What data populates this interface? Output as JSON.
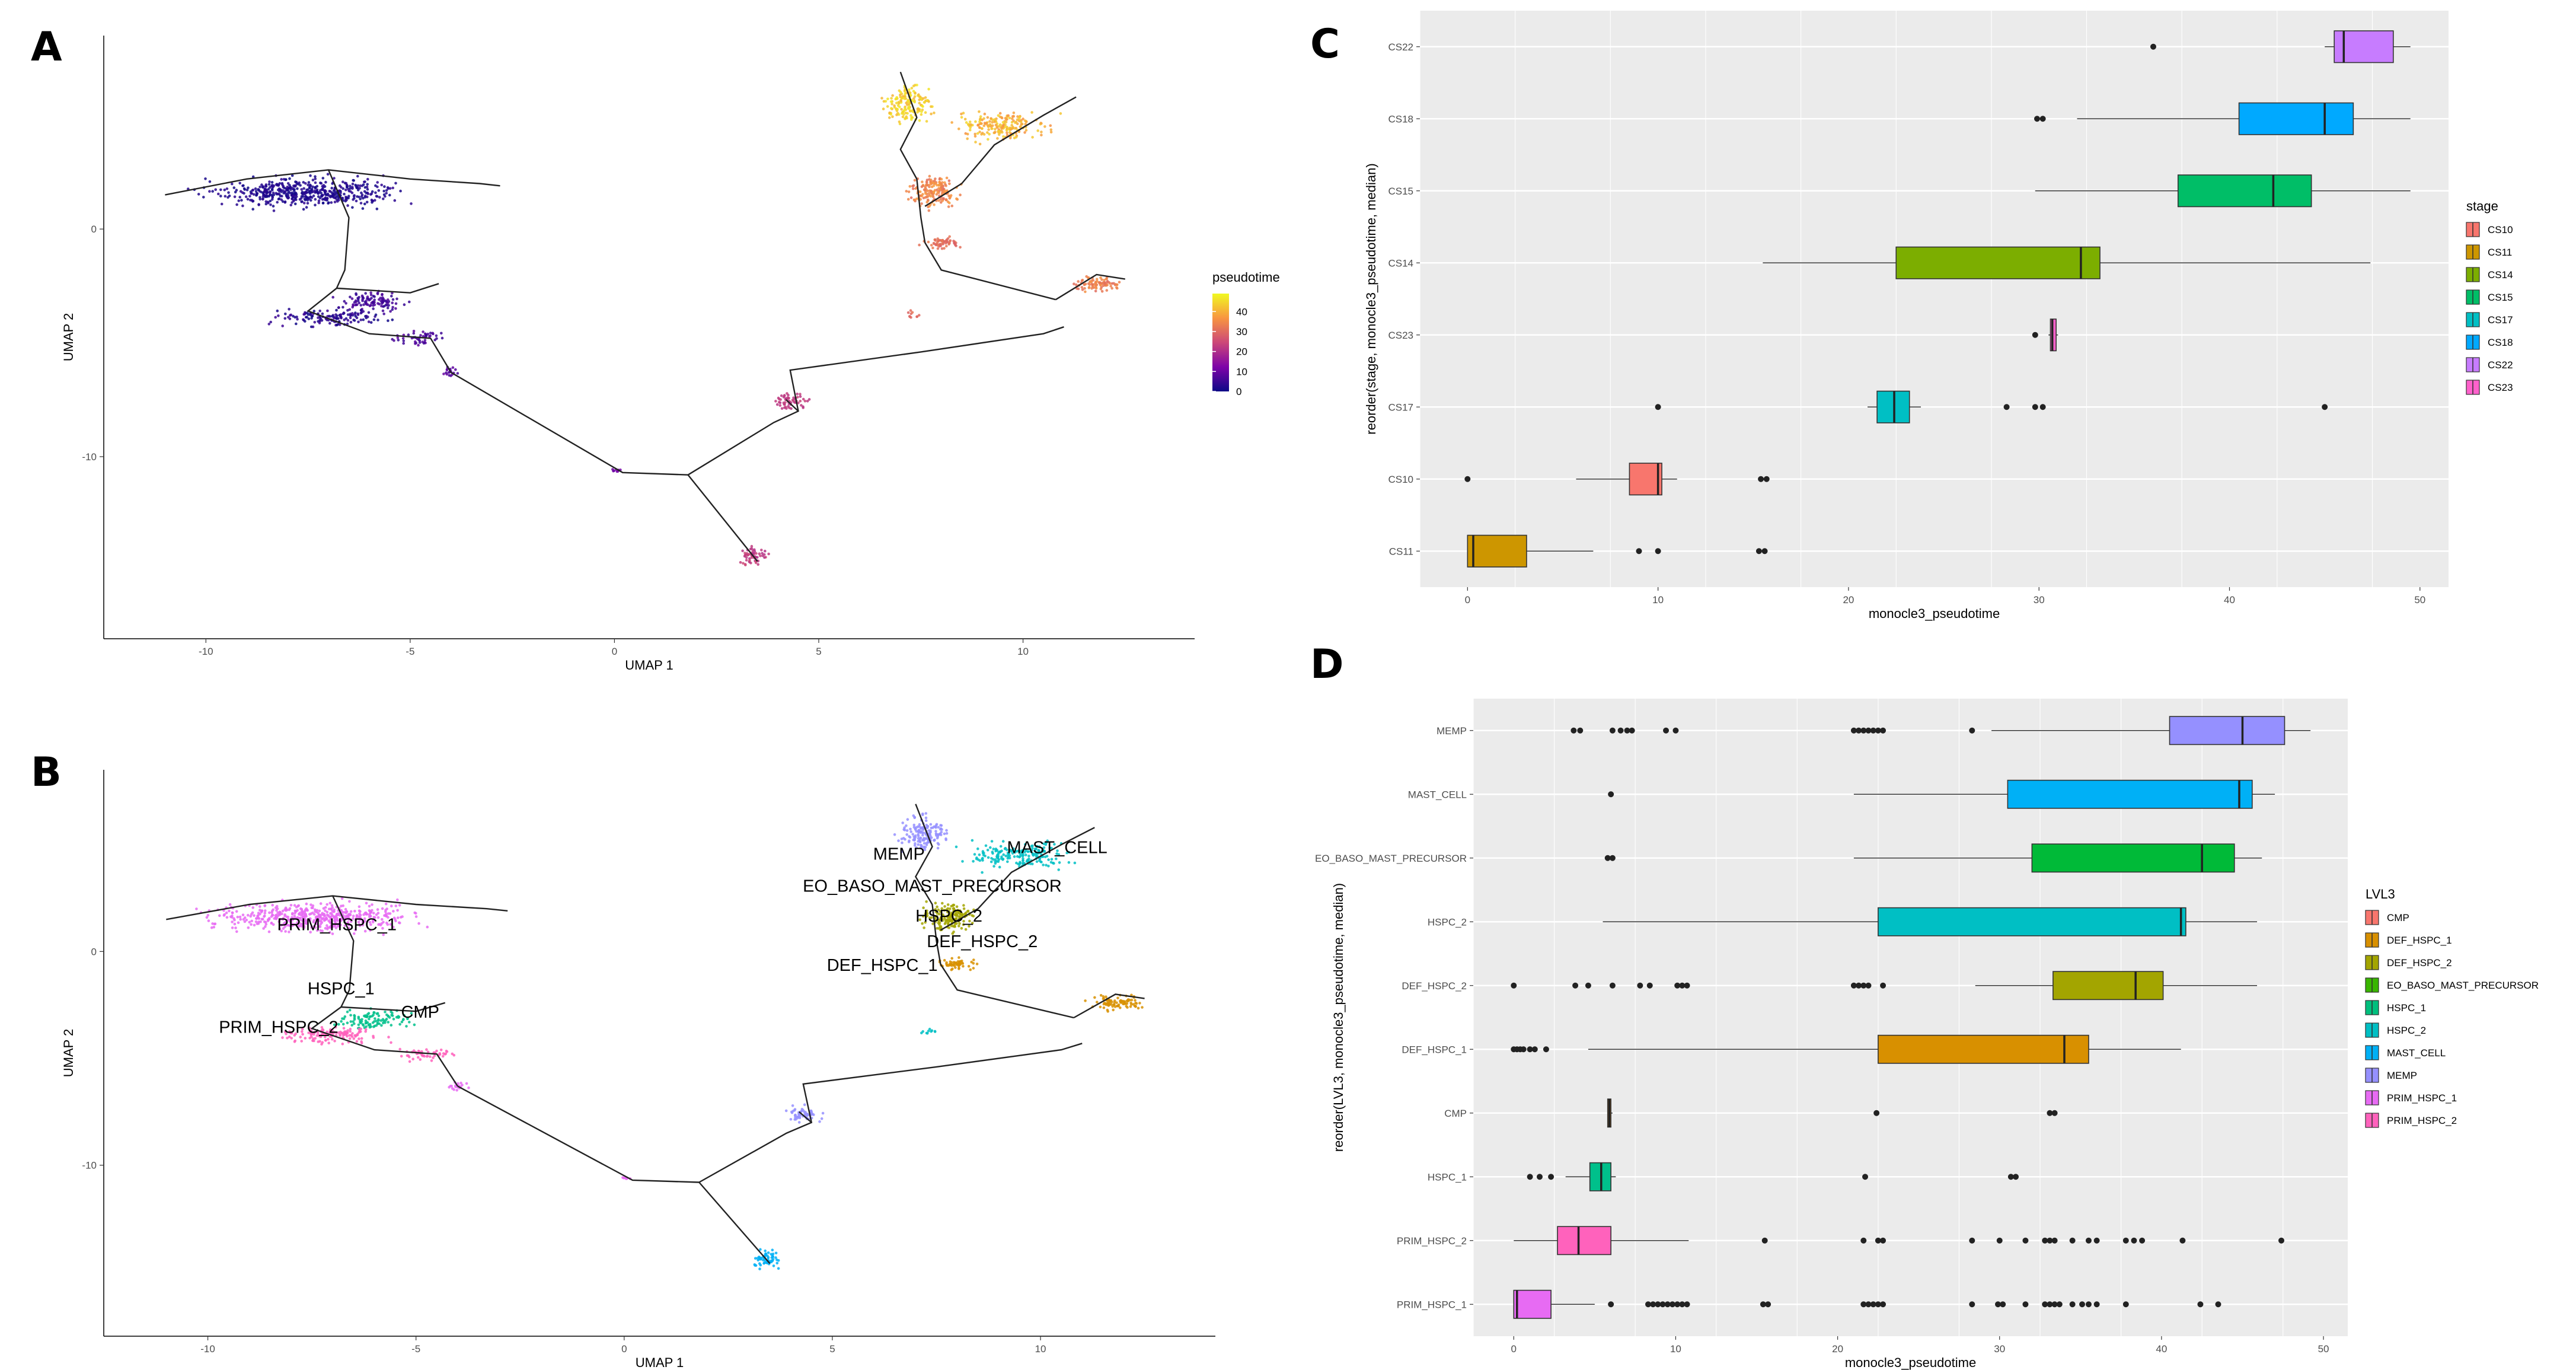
{
  "panels": {
    "A": "A",
    "B": "B",
    "C": "C",
    "D": "D"
  },
  "chart_data": [
    {
      "panel": "A",
      "type": "scatter",
      "xlabel": "UMAP 1",
      "ylabel": "UMAP 2",
      "xlim": [
        -12.5,
        14.2
      ],
      "ylim": [
        -18,
        8.5
      ],
      "xticks": [
        -10,
        -5,
        0,
        5,
        10
      ],
      "yticks": [
        0,
        -10
      ],
      "legend": {
        "title": "pseudotime",
        "position": "right",
        "ticks": [
          40,
          30,
          20,
          10,
          0
        ],
        "colors": [
          "#0d0887",
          "#7e03a8",
          "#cc4778",
          "#f89540",
          "#f0f921"
        ],
        "range": [
          0,
          49
        ]
      }
    },
    {
      "panel": "B",
      "type": "scatter",
      "xlabel": "UMAP 1",
      "ylabel": "UMAP 2",
      "xlim": [
        -12.5,
        14.2
      ],
      "ylim": [
        -18,
        8.5
      ],
      "xticks": [
        -10,
        -5,
        0,
        5,
        10
      ],
      "yticks": [
        0,
        -10
      ],
      "cell_labels": [
        {
          "text": "PRIM_HSPC_1",
          "x": -6.9,
          "y": 1.0
        },
        {
          "text": "HSPC_1",
          "x": -6.8,
          "y": -2.0
        },
        {
          "text": "CMP",
          "x": -4.9,
          "y": -3.1
        },
        {
          "text": "PRIM_HSPC_2",
          "x": -8.3,
          "y": -3.8
        },
        {
          "text": "MEMP",
          "x": 6.6,
          "y": 4.3
        },
        {
          "text": "MAST_CELL",
          "x": 10.4,
          "y": 4.6
        },
        {
          "text": "EO_BASO_MAST_PRECURSOR",
          "x": 7.4,
          "y": 2.8
        },
        {
          "text": "HSPC_2",
          "x": 7.8,
          "y": 1.4
        },
        {
          "text": "DEF_HSPC_2",
          "x": 8.6,
          "y": 0.2
        },
        {
          "text": "DEF_HSPC_1",
          "x": 6.2,
          "y": -0.9
        }
      ]
    },
    {
      "panel": "C",
      "type": "box",
      "xlabel": "monocle3_pseudotime",
      "ylabel": "reorder(stage, monocle3_pseudotime, median)",
      "xlim": [
        -2.5,
        51.5
      ],
      "xticks": [
        0,
        10,
        20,
        30,
        40,
        50
      ],
      "legend": {
        "title": "stage",
        "position": "right"
      },
      "categories": [
        "CS22",
        "CS18",
        "CS15",
        "CS14",
        "CS23",
        "CS17",
        "CS10",
        "CS11"
      ],
      "series": [
        {
          "name": "CS22",
          "color": "#C77CFF",
          "lower": 45.0,
          "q1": 45.5,
          "median": 46.0,
          "q3": 48.6,
          "upper": 49.5,
          "outliers": [
            36.0
          ]
        },
        {
          "name": "CS18",
          "color": "#00A9FF",
          "lower": 32.0,
          "q1": 40.5,
          "median": 45.0,
          "q3": 46.5,
          "upper": 49.5,
          "outliers": [
            29.9,
            30.2
          ]
        },
        {
          "name": "CS15",
          "color": "#00BE67",
          "lower": 29.8,
          "q1": 37.3,
          "median": 42.3,
          "q3": 44.3,
          "upper": 49.5,
          "outliers": []
        },
        {
          "name": "CS14",
          "color": "#7CAE00",
          "lower": 15.5,
          "q1": 22.5,
          "median": 32.2,
          "q3": 33.2,
          "upper": 47.4,
          "outliers": []
        },
        {
          "name": "CS23",
          "color": "#FF61CC",
          "lower": 30.5,
          "q1": 30.6,
          "median": 30.7,
          "q3": 30.9,
          "upper": 31.0,
          "outliers": [
            29.8
          ]
        },
        {
          "name": "CS17",
          "color": "#00BFC4",
          "lower": 21.0,
          "q1": 21.5,
          "median": 22.4,
          "q3": 23.2,
          "upper": 23.8,
          "outliers": [
            10.0,
            28.3,
            29.8,
            30.2,
            45.0
          ]
        },
        {
          "name": "CS10",
          "color": "#F8766D",
          "lower": 5.7,
          "q1": 8.5,
          "median": 10.0,
          "q3": 10.2,
          "upper": 11.0,
          "outliers": [
            0.0,
            15.4,
            15.7
          ]
        },
        {
          "name": "CS11",
          "color": "#CD9600",
          "lower": 0.0,
          "q1": 0.0,
          "median": 0.3,
          "q3": 3.1,
          "upper": 6.6,
          "outliers": [
            9.0,
            10.0,
            15.3,
            15.6
          ]
        }
      ],
      "legend_order": [
        "CS10",
        "CS11",
        "CS14",
        "CS15",
        "CS17",
        "CS18",
        "CS22",
        "CS23"
      ]
    },
    {
      "panel": "D",
      "type": "box",
      "xlabel": "monocle3_pseudotime",
      "ylabel": "reorder(LVL3, monocle3_pseudotime, median)",
      "xlim": [
        -2.5,
        51.5
      ],
      "xticks": [
        0,
        10,
        20,
        30,
        40,
        50
      ],
      "legend": {
        "title": "LVL3",
        "position": "right"
      },
      "categories": [
        "MEMP",
        "MAST_CELL",
        "EO_BASO_MAST_PRECURSOR",
        "HSPC_2",
        "DEF_HSPC_2",
        "DEF_HSPC_1",
        "CMP",
        "HSPC_1",
        "PRIM_HSPC_2",
        "PRIM_HSPC_1"
      ],
      "series": [
        {
          "name": "MEMP",
          "color": "#9590FF",
          "lower": 29.5,
          "q1": 40.5,
          "median": 45.0,
          "q3": 47.6,
          "upper": 49.2,
          "outliers": [
            3.7,
            4.1,
            6.1,
            6.6,
            7.0,
            7.3,
            9.4,
            10.0,
            21.0,
            21.3,
            21.6,
            21.9,
            22.2,
            22.5,
            22.8,
            28.3
          ]
        },
        {
          "name": "MAST_CELL",
          "color": "#00B0F6",
          "lower": 21.0,
          "q1": 30.5,
          "median": 44.8,
          "q3": 45.6,
          "upper": 47.0,
          "outliers": [
            6.0
          ]
        },
        {
          "name": "EO_BASO_MAST_PRECURSOR",
          "color": "#00BA38",
          "lower": 21.0,
          "q1": 32.0,
          "median": 42.5,
          "q3": 44.5,
          "upper": 46.2,
          "outliers": [
            5.8,
            6.1
          ]
        },
        {
          "name": "HSPC_2",
          "color": "#00BFC4",
          "lower": 5.5,
          "q1": 22.5,
          "median": 41.2,
          "q3": 41.5,
          "upper": 45.9,
          "outliers": []
        },
        {
          "name": "DEF_HSPC_2",
          "color": "#A3A500",
          "lower": 28.5,
          "q1": 33.3,
          "median": 38.4,
          "q3": 40.1,
          "upper": 45.9,
          "outliers": [
            0.0,
            3.8,
            4.6,
            6.1,
            7.8,
            8.4,
            10.1,
            10.4,
            10.7,
            21.0,
            21.3,
            21.6,
            21.9,
            22.8
          ]
        },
        {
          "name": "DEF_HSPC_1",
          "color": "#D89000",
          "lower": 4.6,
          "q1": 22.5,
          "median": 34.0,
          "q3": 35.5,
          "upper": 41.2,
          "outliers": [
            0.0,
            0.2,
            0.4,
            0.6,
            1.0,
            1.3,
            2.0
          ]
        },
        {
          "name": "CMP",
          "color": "#E68613",
          "lower": 5.8,
          "q1": 5.8,
          "median": 5.9,
          "q3": 6.0,
          "upper": 6.1,
          "outliers": [
            22.4,
            33.1,
            33.4
          ]
        },
        {
          "name": "HSPC_1",
          "color": "#00C08B",
          "lower": 3.2,
          "q1": 4.7,
          "median": 5.4,
          "q3": 6.0,
          "upper": 6.3,
          "outliers": [
            1.0,
            1.6,
            2.3,
            21.7,
            30.7,
            31.0
          ]
        },
        {
          "name": "PRIM_HSPC_2",
          "color": "#FF62BC",
          "lower": 0.0,
          "q1": 2.7,
          "median": 4.0,
          "q3": 6.0,
          "upper": 10.8,
          "outliers": [
            15.5,
            21.6,
            22.5,
            22.8,
            28.3,
            30.0,
            31.6,
            32.8,
            33.1,
            33.4,
            34.5,
            35.5,
            36.0,
            37.8,
            38.3,
            38.8,
            41.3,
            47.4
          ]
        },
        {
          "name": "PRIM_HSPC_1",
          "color": "#E76BF3",
          "lower": 0.0,
          "q1": 0.0,
          "median": 0.2,
          "q3": 2.3,
          "upper": 5.0,
          "outliers": [
            6.0,
            8.3,
            8.6,
            8.9,
            9.2,
            9.5,
            9.8,
            10.1,
            10.4,
            10.7,
            15.4,
            15.7,
            21.6,
            21.9,
            22.2,
            22.5,
            22.8,
            28.3,
            29.9,
            30.2,
            31.6,
            32.8,
            33.1,
            33.4,
            33.7,
            34.5,
            35.1,
            35.5,
            36.0,
            37.8,
            42.4,
            43.5
          ]
        }
      ],
      "legend_order": [
        "CMP",
        "DEF_HSPC_1",
        "DEF_HSPC_2",
        "EO_BASO_MAST_PRECURSOR",
        "HSPC_1",
        "HSPC_2",
        "MAST_CELL",
        "MEMP",
        "PRIM_HSPC_1",
        "PRIM_HSPC_2"
      ],
      "legend_colors": [
        "#F8766D",
        "#D89000",
        "#A3A500",
        "#39B600",
        "#00BF7D",
        "#00BFC4",
        "#00B0F6",
        "#9590FF",
        "#E76BF3",
        "#FF62BC"
      ]
    }
  ]
}
